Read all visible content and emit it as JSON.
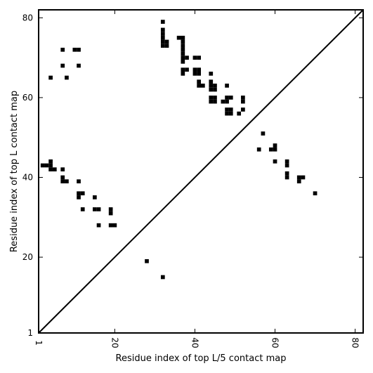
{
  "chart_data": {
    "type": "heatmap",
    "title": "",
    "xlabel": "Residue index of top L/5 contact map",
    "ylabel": "Residue index of top L contact map",
    "xlim": [
      1,
      82
    ],
    "ylim": [
      1,
      82
    ],
    "x_ticks": [
      1,
      20,
      40,
      60,
      80
    ],
    "y_ticks": [
      1,
      20,
      40,
      60,
      80
    ],
    "x_tick_labels": [
      "1",
      "20",
      "40",
      "60",
      "80"
    ],
    "y_tick_labels": [
      "1",
      "20",
      "40",
      "60",
      "80"
    ],
    "diagonal": true,
    "cell_color": "#000000",
    "background": "#ffffff",
    "upper_triangle_contacts": [
      [
        7,
        72
      ],
      [
        10,
        72
      ],
      [
        11,
        72
      ],
      [
        4,
        65
      ],
      [
        7,
        68
      ],
      [
        11,
        68
      ],
      [
        8,
        65
      ],
      [
        32,
        79
      ],
      [
        32,
        77
      ],
      [
        32,
        76
      ],
      [
        32,
        75
      ],
      [
        32,
        74
      ],
      [
        33,
        74
      ],
      [
        32,
        73
      ],
      [
        33,
        73
      ],
      [
        36,
        75
      ],
      [
        37,
        75
      ],
      [
        37,
        74
      ],
      [
        37,
        73
      ],
      [
        37,
        72
      ],
      [
        37,
        71
      ],
      [
        37,
        70
      ],
      [
        38,
        70
      ],
      [
        37,
        69
      ],
      [
        40,
        70
      ],
      [
        41,
        70
      ],
      [
        37,
        67
      ],
      [
        38,
        67
      ],
      [
        37,
        66
      ],
      [
        40,
        67
      ],
      [
        41,
        67
      ],
      [
        40,
        66
      ],
      [
        41,
        66
      ],
      [
        44,
        66
      ],
      [
        41,
        64
      ],
      [
        41,
        63
      ],
      [
        42,
        63
      ],
      [
        44,
        64
      ],
      [
        44,
        63
      ],
      [
        45,
        63
      ],
      [
        44,
        62
      ],
      [
        45,
        62
      ],
      [
        48,
        63
      ],
      [
        44,
        60
      ],
      [
        45,
        60
      ],
      [
        44,
        59
      ],
      [
        45,
        59
      ],
      [
        47,
        59
      ],
      [
        48,
        59
      ],
      [
        48,
        60
      ],
      [
        49,
        60
      ],
      [
        52,
        60
      ],
      [
        52,
        59
      ],
      [
        48,
        57
      ],
      [
        49,
        57
      ],
      [
        48,
        56
      ],
      [
        49,
        56
      ],
      [
        51,
        56
      ],
      [
        52,
        57
      ]
    ],
    "lower_triangle_contacts": [
      [
        2,
        43
      ],
      [
        3,
        43
      ],
      [
        4,
        44
      ],
      [
        4,
        43
      ],
      [
        4,
        42
      ],
      [
        5,
        42
      ],
      [
        7,
        42
      ],
      [
        7,
        40
      ],
      [
        7,
        39
      ],
      [
        8,
        39
      ],
      [
        11,
        39
      ],
      [
        11,
        36
      ],
      [
        12,
        36
      ],
      [
        11,
        35
      ],
      [
        15,
        35
      ],
      [
        12,
        32
      ],
      [
        15,
        32
      ],
      [
        16,
        32
      ],
      [
        19,
        32
      ],
      [
        19,
        31
      ],
      [
        16,
        28
      ],
      [
        19,
        28
      ],
      [
        20,
        28
      ],
      [
        28,
        19
      ],
      [
        32,
        15
      ],
      [
        57,
        51
      ],
      [
        56,
        47
      ],
      [
        59,
        47
      ],
      [
        60,
        47
      ],
      [
        60,
        48
      ],
      [
        60,
        44
      ],
      [
        63,
        44
      ],
      [
        63,
        43
      ],
      [
        63,
        41
      ],
      [
        63,
        40
      ],
      [
        66,
        40
      ],
      [
        67,
        40
      ],
      [
        66,
        39
      ],
      [
        70,
        36
      ]
    ]
  }
}
